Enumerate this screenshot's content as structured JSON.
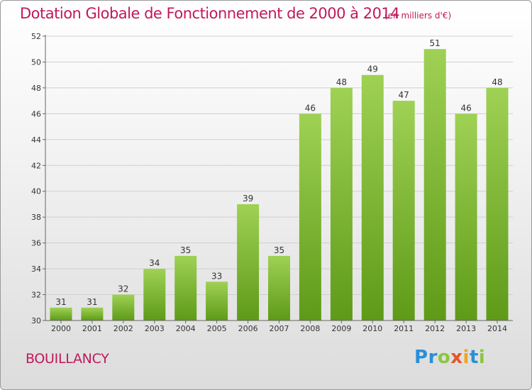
{
  "title": "Dotation Globale de Fonctionnement de 2000 à 2014",
  "subtitle": "(en milliers d'€)",
  "commune": "BOUILLANCY",
  "logo": {
    "text": "Proxiti",
    "letters": [
      "P",
      "r",
      "o",
      "x",
      "i",
      "t",
      "i"
    ],
    "colors": [
      "#2a8fd8",
      "#2a8fd8",
      "#8cc63f",
      "#e8542a",
      "#f0a51e",
      "#2a8fd8",
      "#8cc63f"
    ]
  },
  "colors": {
    "title": "#c2185b",
    "bar_top": "#9fd154",
    "bar_bottom": "#5e9a18",
    "axis": "#666666",
    "grid": "#cfcfcf"
  },
  "chart_data": {
    "type": "bar",
    "title": "Dotation Globale de Fonctionnement de 2000 à 2014",
    "subtitle": "(en milliers d'€)",
    "categories": [
      "2000",
      "2001",
      "2002",
      "2003",
      "2004",
      "2005",
      "2006",
      "2007",
      "2008",
      "2009",
      "2010",
      "2011",
      "2012",
      "2013",
      "2014"
    ],
    "values": [
      31,
      31,
      32,
      34,
      35,
      33,
      39,
      35,
      46,
      48,
      49,
      47,
      51,
      46,
      48
    ],
    "ylim": [
      30,
      52
    ],
    "yticks": [
      30,
      32,
      34,
      36,
      38,
      40,
      42,
      44,
      46,
      48,
      50,
      52
    ],
    "grid": "horizontal",
    "data_labels": true
  }
}
